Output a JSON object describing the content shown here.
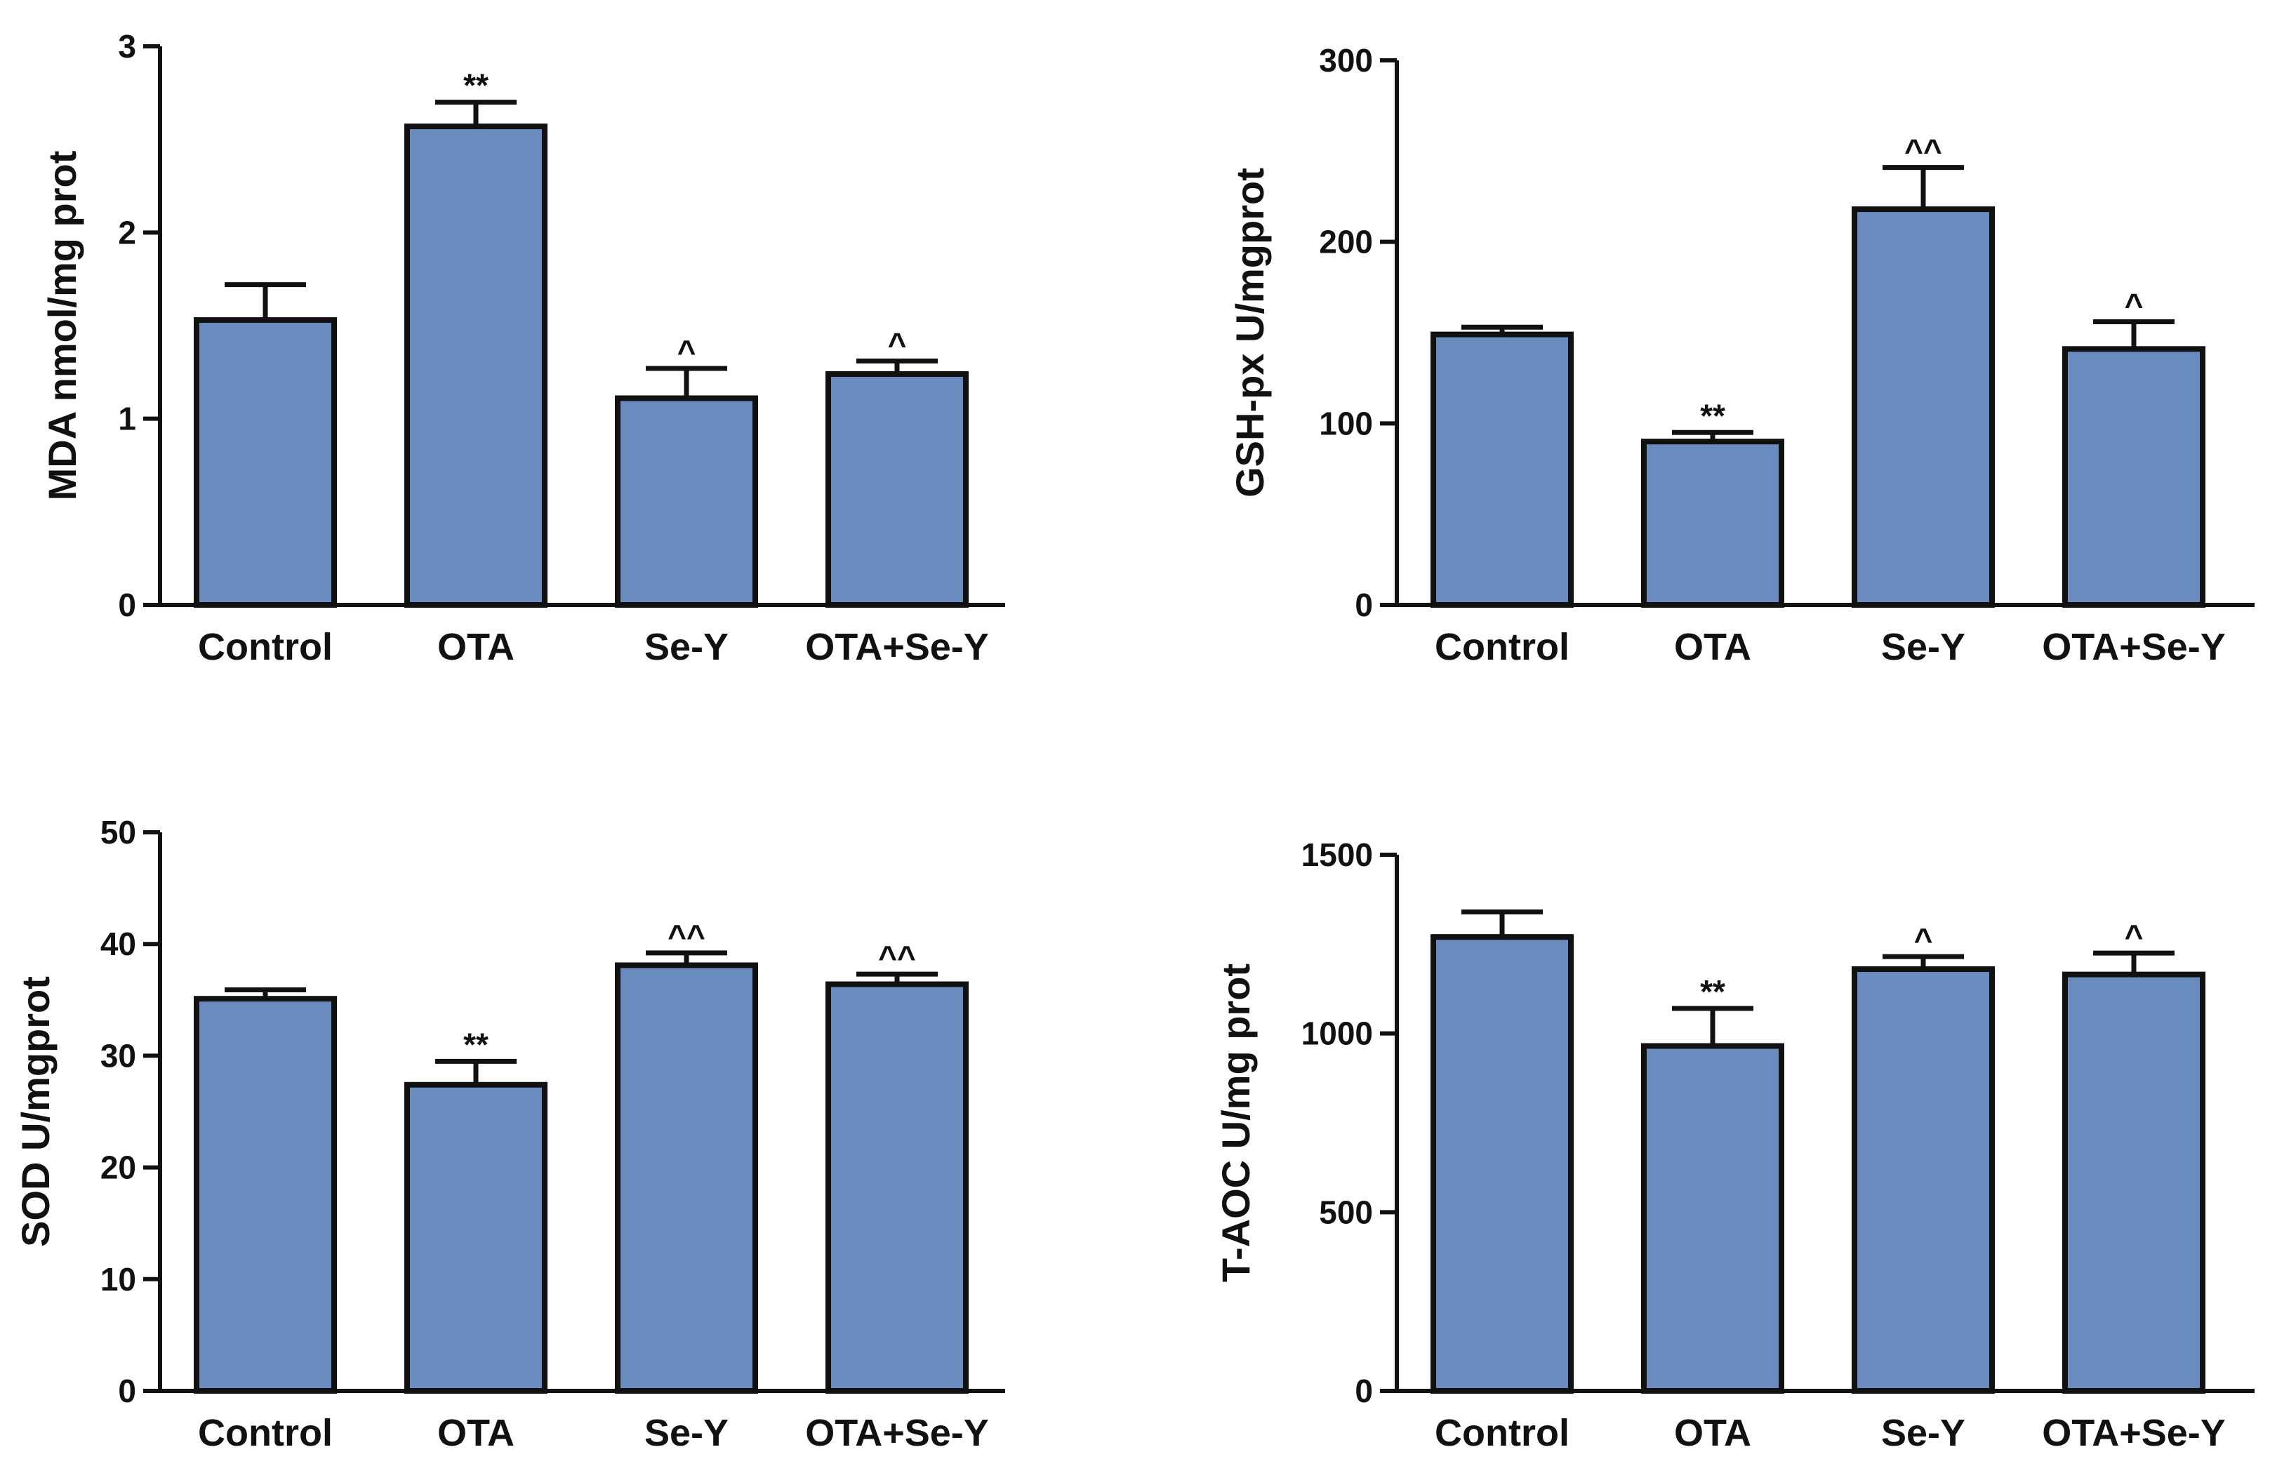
{
  "chart_data": [
    {
      "type": "bar",
      "categories": [
        "Control",
        "OTA",
        "Se-Y",
        "OTA+Se-Y"
      ],
      "values": [
        1.53,
        2.57,
        1.11,
        1.24
      ],
      "errors": [
        0.19,
        0.13,
        0.16,
        0.07
      ],
      "annotations": [
        "",
        "**",
        "^",
        "^"
      ],
      "ylabel": "MDA nmol/mg prot",
      "ylim": [
        0,
        3
      ],
      "yticks": [
        0,
        1,
        2,
        3
      ],
      "bar_color": "#6a8bbd"
    },
    {
      "type": "bar",
      "categories": [
        "Control",
        "OTA",
        "Se-Y",
        "OTA+Se-Y"
      ],
      "values": [
        149,
        90,
        218,
        141
      ],
      "errors": [
        4,
        5,
        23,
        15
      ],
      "annotations": [
        "",
        "**",
        "^^",
        "^"
      ],
      "ylabel": "GSH-px U/mgprot",
      "ylim": [
        0,
        300
      ],
      "yticks": [
        0,
        100,
        200,
        300
      ],
      "bar_color": "#6a8bbd"
    },
    {
      "type": "bar",
      "categories": [
        "Control",
        "OTA",
        "Se-Y",
        "OTA+Se-Y"
      ],
      "values": [
        35.1,
        27.4,
        38.1,
        36.4
      ],
      "errors": [
        0.8,
        2.1,
        1.1,
        0.9
      ],
      "annotations": [
        "",
        "**",
        "^^",
        "^^"
      ],
      "ylabel": "SOD U/mgprot",
      "ylim": [
        0,
        50
      ],
      "yticks": [
        0,
        10,
        20,
        30,
        40,
        50
      ],
      "bar_color": "#6a8bbd"
    },
    {
      "type": "bar",
      "categories": [
        "Control",
        "OTA",
        "Se-Y",
        "OTA+Se-Y"
      ],
      "values": [
        1270,
        965,
        1180,
        1165
      ],
      "errors": [
        70,
        105,
        35,
        60
      ],
      "annotations": [
        "",
        "**",
        "^",
        "^"
      ],
      "ylabel": "T-AOC U/mg prot",
      "ylim": [
        0,
        1500
      ],
      "yticks": [
        0,
        500,
        1000,
        1500
      ],
      "bar_color": "#6a8bbd"
    }
  ]
}
